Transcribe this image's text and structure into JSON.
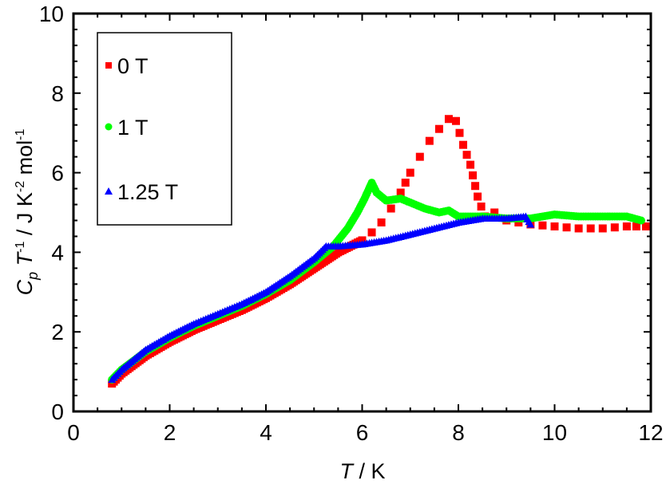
{
  "chart_data": {
    "type": "scatter",
    "title": "",
    "xlabel": {
      "italic": "T",
      "rest": " / K"
    },
    "ylabel": {
      "c": "C",
      "p": "p",
      "t": " T",
      "e1": "-1",
      "u1": " / J K",
      "e2": "-2",
      "u2": " mol",
      "e3": "-1"
    },
    "xlim": [
      0,
      12
    ],
    "ylim": [
      0,
      10
    ],
    "xticks": [
      "0",
      "2",
      "4",
      "6",
      "8",
      "10",
      "12"
    ],
    "yticks": [
      "0",
      "2",
      "4",
      "6",
      "8",
      "10"
    ],
    "grid": false,
    "legend_position": "top-left",
    "series": [
      {
        "name": "0 T",
        "color": "#ff0000",
        "marker": "square",
        "x": [
          0.8,
          1.0,
          1.5,
          2.0,
          2.5,
          3.0,
          3.5,
          4.0,
          4.5,
          5.0,
          5.5,
          6.0,
          6.2,
          6.4,
          6.6,
          6.8,
          7.0,
          7.2,
          7.4,
          7.6,
          7.8,
          7.95,
          8.1,
          8.25,
          8.4,
          8.55,
          8.75,
          9.0,
          9.5,
          10.0,
          10.5,
          11.0,
          11.5,
          11.9
        ],
        "y": [
          0.7,
          0.95,
          1.4,
          1.75,
          2.05,
          2.3,
          2.55,
          2.85,
          3.2,
          3.6,
          4.0,
          4.3,
          4.5,
          4.75,
          5.1,
          5.5,
          6.0,
          6.4,
          6.8,
          7.1,
          7.35,
          7.3,
          6.7,
          6.2,
          5.4,
          4.9,
          5.0,
          4.8,
          4.7,
          4.65,
          4.6,
          4.6,
          4.65,
          4.65
        ]
      },
      {
        "name": "1 T",
        "color": "#00ff00",
        "marker": "circle",
        "x": [
          0.8,
          1.0,
          1.5,
          2.0,
          2.5,
          3.0,
          3.5,
          4.0,
          4.5,
          5.0,
          5.4,
          5.7,
          5.9,
          6.05,
          6.2,
          6.3,
          6.5,
          6.8,
          7.0,
          7.3,
          7.6,
          7.8,
          8.0,
          8.5,
          9.0,
          9.5,
          10.0,
          10.5,
          11.0,
          11.5,
          11.8
        ],
        "y": [
          0.8,
          1.05,
          1.5,
          1.85,
          2.15,
          2.4,
          2.65,
          2.95,
          3.3,
          3.75,
          4.15,
          4.6,
          5.0,
          5.35,
          5.75,
          5.5,
          5.3,
          5.35,
          5.25,
          5.1,
          5.0,
          5.05,
          4.9,
          4.9,
          4.85,
          4.85,
          4.95,
          4.9,
          4.9,
          4.9,
          4.8
        ]
      },
      {
        "name": "1.25 T",
        "color": "#0000ff",
        "marker": "triangle",
        "x": [
          0.8,
          1.0,
          1.5,
          2.0,
          2.5,
          3.0,
          3.5,
          4.0,
          4.5,
          5.0,
          5.25,
          5.5,
          6.0,
          6.5,
          7.0,
          7.5,
          8.0,
          8.5,
          9.0,
          9.4,
          9.5
        ],
        "y": [
          0.8,
          1.05,
          1.55,
          1.9,
          2.2,
          2.45,
          2.7,
          3.0,
          3.4,
          3.85,
          4.15,
          4.15,
          4.2,
          4.3,
          4.45,
          4.6,
          4.75,
          4.85,
          4.85,
          4.9,
          4.7
        ]
      }
    ]
  }
}
